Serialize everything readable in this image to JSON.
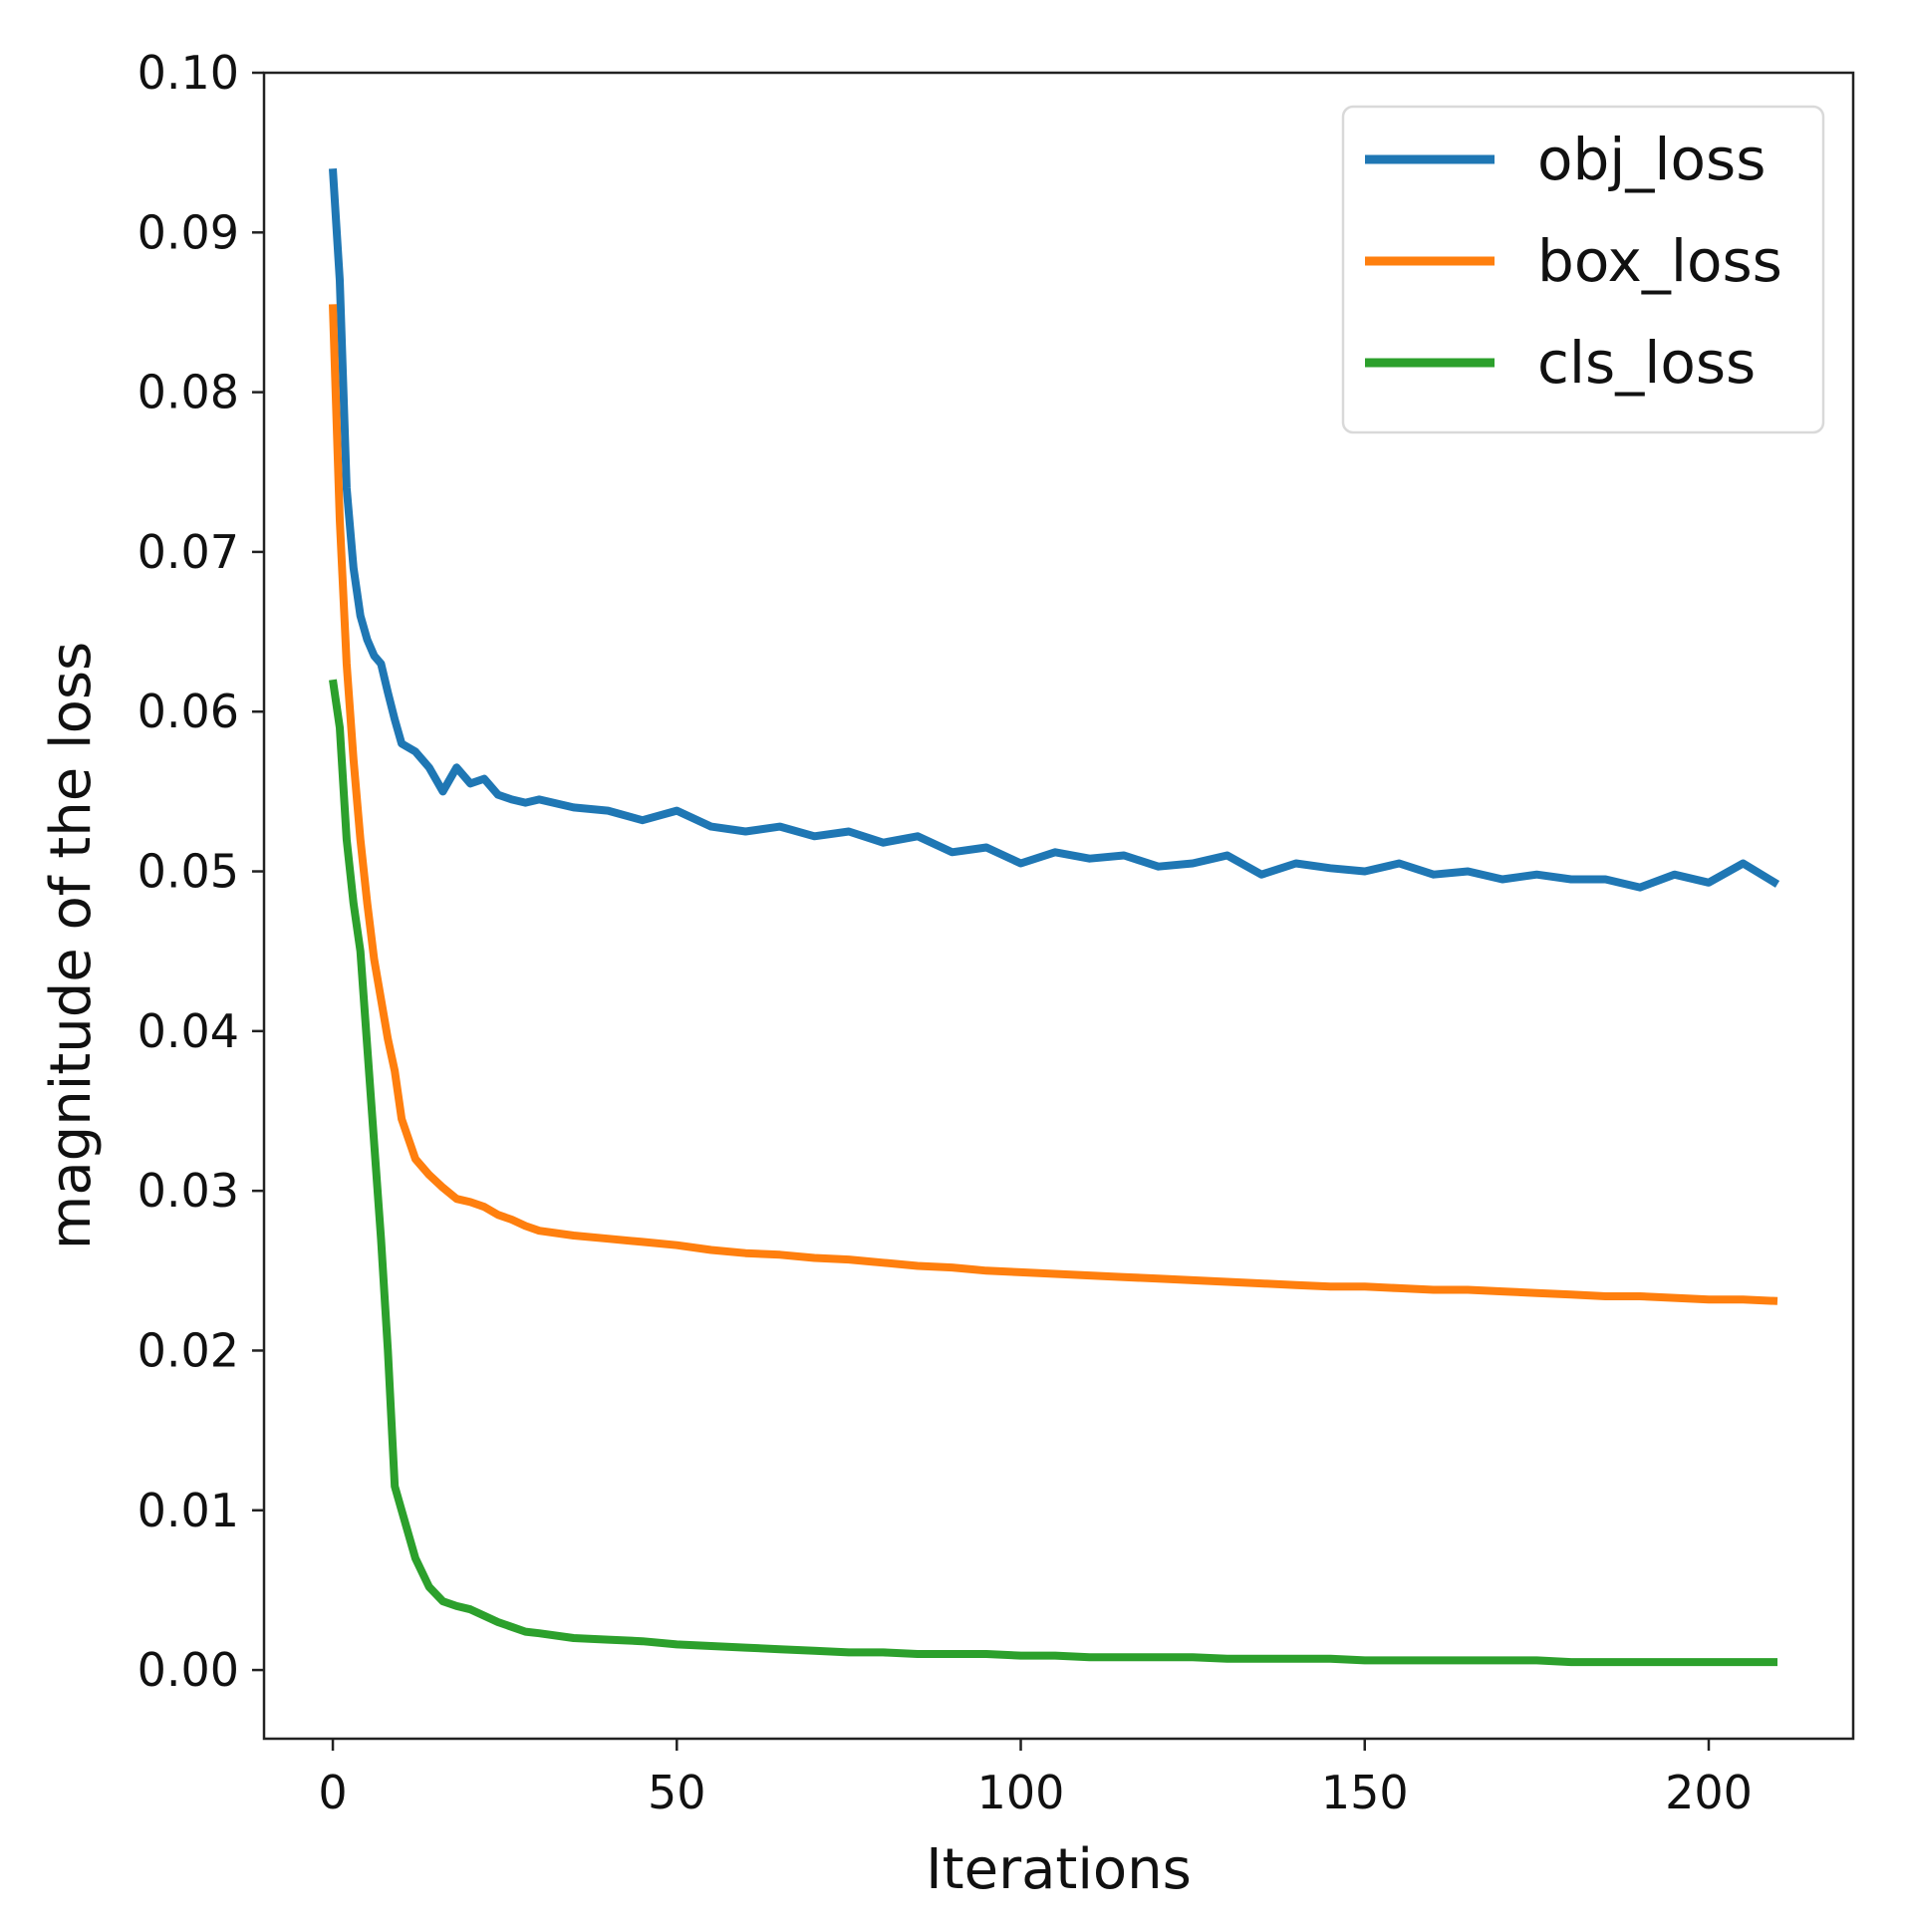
{
  "chart_data": {
    "type": "line",
    "title": "",
    "xlabel": "Iterations",
    "ylabel": "magnitude of the loss",
    "xlim": [
      -10,
      221
    ],
    "ylim": [
      -0.0043,
      0.1
    ],
    "xticks": [
      0,
      50,
      100,
      150,
      200
    ],
    "xtick_labels": [
      "0",
      "50",
      "100",
      "150",
      "200"
    ],
    "yticks": [
      0.0,
      0.01,
      0.02,
      0.03,
      0.04,
      0.05,
      0.06,
      0.07,
      0.08,
      0.09,
      0.1
    ],
    "ytick_labels": [
      "0.00",
      "0.01",
      "0.02",
      "0.03",
      "0.04",
      "0.05",
      "0.06",
      "0.07",
      "0.08",
      "0.09",
      "0.10"
    ],
    "grid": false,
    "legend_position": "top-right",
    "x": [
      0,
      1,
      2,
      3,
      4,
      5,
      6,
      7,
      8,
      9,
      10,
      12,
      14,
      16,
      18,
      20,
      22,
      24,
      26,
      28,
      30,
      35,
      40,
      45,
      50,
      55,
      60,
      65,
      70,
      75,
      80,
      85,
      90,
      95,
      100,
      105,
      110,
      115,
      120,
      125,
      130,
      135,
      140,
      145,
      150,
      155,
      160,
      165,
      170,
      175,
      180,
      185,
      190,
      195,
      200,
      205,
      210
    ],
    "series": [
      {
        "name": "obj_loss",
        "color": "#1f77b4",
        "values": [
          0.094,
          0.087,
          0.074,
          0.069,
          0.066,
          0.0645,
          0.0635,
          0.063,
          0.0612,
          0.0595,
          0.058,
          0.0575,
          0.0565,
          0.055,
          0.0565,
          0.0555,
          0.0558,
          0.0548,
          0.0545,
          0.0543,
          0.0545,
          0.054,
          0.0538,
          0.0532,
          0.0538,
          0.0528,
          0.0525,
          0.0528,
          0.0522,
          0.0525,
          0.0518,
          0.0522,
          0.0512,
          0.0515,
          0.0505,
          0.0512,
          0.0508,
          0.051,
          0.0503,
          0.0505,
          0.051,
          0.0498,
          0.0505,
          0.0502,
          0.05,
          0.0505,
          0.0498,
          0.05,
          0.0495,
          0.0498,
          0.0495,
          0.0495,
          0.049,
          0.0498,
          0.0493,
          0.0505,
          0.0492
        ]
      },
      {
        "name": "box_loss",
        "color": "#ff7f0e",
        "values": [
          0.0855,
          0.072,
          0.063,
          0.057,
          0.052,
          0.048,
          0.0445,
          0.042,
          0.0395,
          0.0375,
          0.0345,
          0.032,
          0.031,
          0.0302,
          0.0295,
          0.0293,
          0.029,
          0.0285,
          0.0282,
          0.0278,
          0.0275,
          0.0272,
          0.027,
          0.0268,
          0.0266,
          0.0263,
          0.0261,
          0.026,
          0.0258,
          0.0257,
          0.0255,
          0.0253,
          0.0252,
          0.025,
          0.0249,
          0.0248,
          0.0247,
          0.0246,
          0.0245,
          0.0244,
          0.0243,
          0.0242,
          0.0241,
          0.024,
          0.024,
          0.0239,
          0.0238,
          0.0238,
          0.0237,
          0.0236,
          0.0235,
          0.0234,
          0.0234,
          0.0233,
          0.0232,
          0.0232,
          0.0231
        ]
      },
      {
        "name": "cls_loss",
        "color": "#2ca02c",
        "values": [
          0.062,
          0.059,
          0.052,
          0.048,
          0.045,
          0.039,
          0.033,
          0.027,
          0.02,
          0.0115,
          0.01,
          0.007,
          0.0052,
          0.0043,
          0.004,
          0.0038,
          0.0034,
          0.003,
          0.0027,
          0.0024,
          0.0023,
          0.002,
          0.0019,
          0.0018,
          0.0016,
          0.0015,
          0.0014,
          0.0013,
          0.0012,
          0.0011,
          0.0011,
          0.001,
          0.001,
          0.001,
          0.0009,
          0.0009,
          0.0008,
          0.0008,
          0.0008,
          0.0008,
          0.0007,
          0.0007,
          0.0007,
          0.0007,
          0.0006,
          0.0006,
          0.0006,
          0.0006,
          0.0006,
          0.0006,
          0.0005,
          0.0005,
          0.0005,
          0.0005,
          0.0005,
          0.0005,
          0.0005
        ]
      }
    ]
  }
}
